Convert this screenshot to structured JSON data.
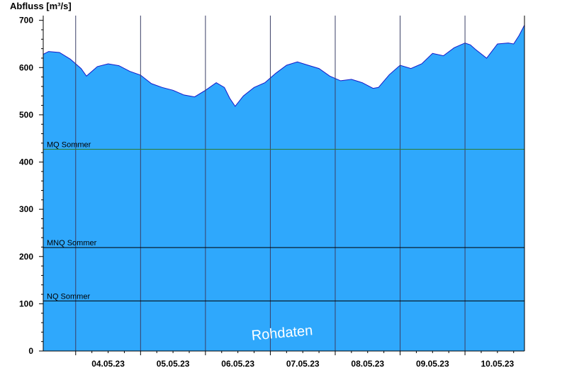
{
  "chart_data": {
    "type": "area",
    "ylabel": "Abfluss [m³/s]",
    "ylim": [
      0,
      710
    ],
    "yticks": [
      0,
      100,
      200,
      300,
      400,
      500,
      600,
      700
    ],
    "xlim": [
      "2023-05-03T12:00",
      "2023-05-10T22:00"
    ],
    "xtick_labels": [
      "04.05.23",
      "05.05.23",
      "06.05.23",
      "07.05.23",
      "08.05.23",
      "09.05.23",
      "10.05.23"
    ],
    "grid": {
      "horizontal_at_ticks": false,
      "vertical_at_midnight": true
    },
    "colors": {
      "fill": "#2fa8fc",
      "line": "#1418c8",
      "mq_line": "#2e7d32",
      "ref_line": "#000000",
      "grid": "#3a3f66"
    },
    "reference_lines": [
      {
        "label": "MQ Sommer",
        "value": 427
      },
      {
        "label": "MNQ Sommer",
        "value": 219
      },
      {
        "label": "NQ Sommer",
        "value": 106
      }
    ],
    "watermark": "Rohdaten",
    "series": [
      {
        "points": [
          [
            "2023-05-03T12:00",
            628
          ],
          [
            "2023-05-03T14:00",
            634
          ],
          [
            "2023-05-03T18:00",
            632
          ],
          [
            "2023-05-03T22:00",
            618
          ],
          [
            "2023-05-04T02:00",
            598
          ],
          [
            "2023-05-04T04:00",
            582
          ],
          [
            "2023-05-04T08:00",
            602
          ],
          [
            "2023-05-04T12:00",
            608
          ],
          [
            "2023-05-04T16:00",
            604
          ],
          [
            "2023-05-04T20:00",
            592
          ],
          [
            "2023-05-05T00:00",
            584
          ],
          [
            "2023-05-05T04:00",
            566
          ],
          [
            "2023-05-05T08:00",
            558
          ],
          [
            "2023-05-05T12:00",
            552
          ],
          [
            "2023-05-05T16:00",
            542
          ],
          [
            "2023-05-05T20:00",
            538
          ],
          [
            "2023-05-06T00:00",
            552
          ],
          [
            "2023-05-06T04:00",
            568
          ],
          [
            "2023-05-06T07:00",
            558
          ],
          [
            "2023-05-06T09:00",
            535
          ],
          [
            "2023-05-06T11:00",
            518
          ],
          [
            "2023-05-06T14:00",
            540
          ],
          [
            "2023-05-06T18:00",
            558
          ],
          [
            "2023-05-06T22:00",
            568
          ],
          [
            "2023-05-07T02:00",
            588
          ],
          [
            "2023-05-07T06:00",
            605
          ],
          [
            "2023-05-07T10:00",
            612
          ],
          [
            "2023-05-07T14:00",
            605
          ],
          [
            "2023-05-07T18:00",
            598
          ],
          [
            "2023-05-07T22:00",
            582
          ],
          [
            "2023-05-08T02:00",
            572
          ],
          [
            "2023-05-08T06:00",
            575
          ],
          [
            "2023-05-08T10:00",
            568
          ],
          [
            "2023-05-08T14:00",
            556
          ],
          [
            "2023-05-08T16:00",
            558
          ],
          [
            "2023-05-08T20:00",
            585
          ],
          [
            "2023-05-09T00:00",
            605
          ],
          [
            "2023-05-09T04:00",
            598
          ],
          [
            "2023-05-09T08:00",
            608
          ],
          [
            "2023-05-09T12:00",
            630
          ],
          [
            "2023-05-09T16:00",
            625
          ],
          [
            "2023-05-09T20:00",
            642
          ],
          [
            "2023-05-10T00:00",
            652
          ],
          [
            "2023-05-10T02:00",
            648
          ],
          [
            "2023-05-10T04:00",
            638
          ],
          [
            "2023-05-10T08:00",
            620
          ],
          [
            "2023-05-10T12:00",
            650
          ],
          [
            "2023-05-10T16:00",
            652
          ],
          [
            "2023-05-10T18:00",
            650
          ],
          [
            "2023-05-10T20:00",
            668
          ],
          [
            "2023-05-10T22:00",
            690
          ]
        ]
      }
    ]
  }
}
